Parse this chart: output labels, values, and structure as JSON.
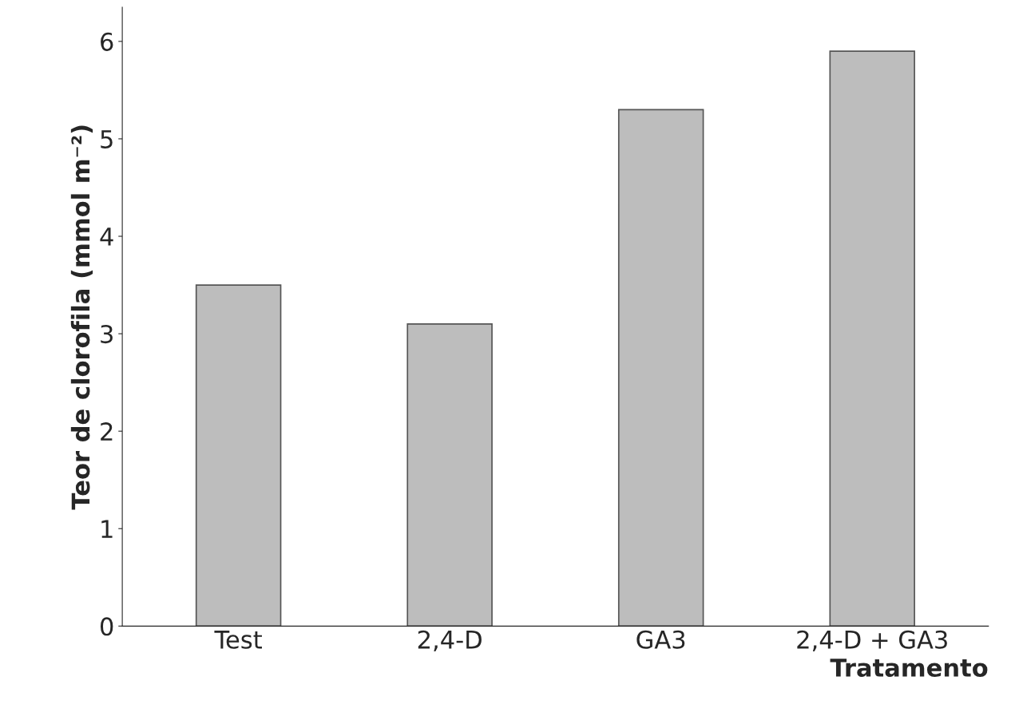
{
  "chart_data": {
    "type": "bar",
    "xlabel": "Tratamento",
    "ylabel": "Teor de clorofila (mmol m⁻²)",
    "categories": [
      "Test",
      "2,4-D",
      "GA3",
      "2,4-D + GA3"
    ],
    "values": [
      3.5,
      3.1,
      5.3,
      5.9
    ],
    "color": "#bdbdbd",
    "ylim": [
      0,
      6.35
    ],
    "yticks": [
      0,
      1,
      2,
      3,
      4,
      5,
      6
    ],
    "grid": false,
    "legend": false
  }
}
